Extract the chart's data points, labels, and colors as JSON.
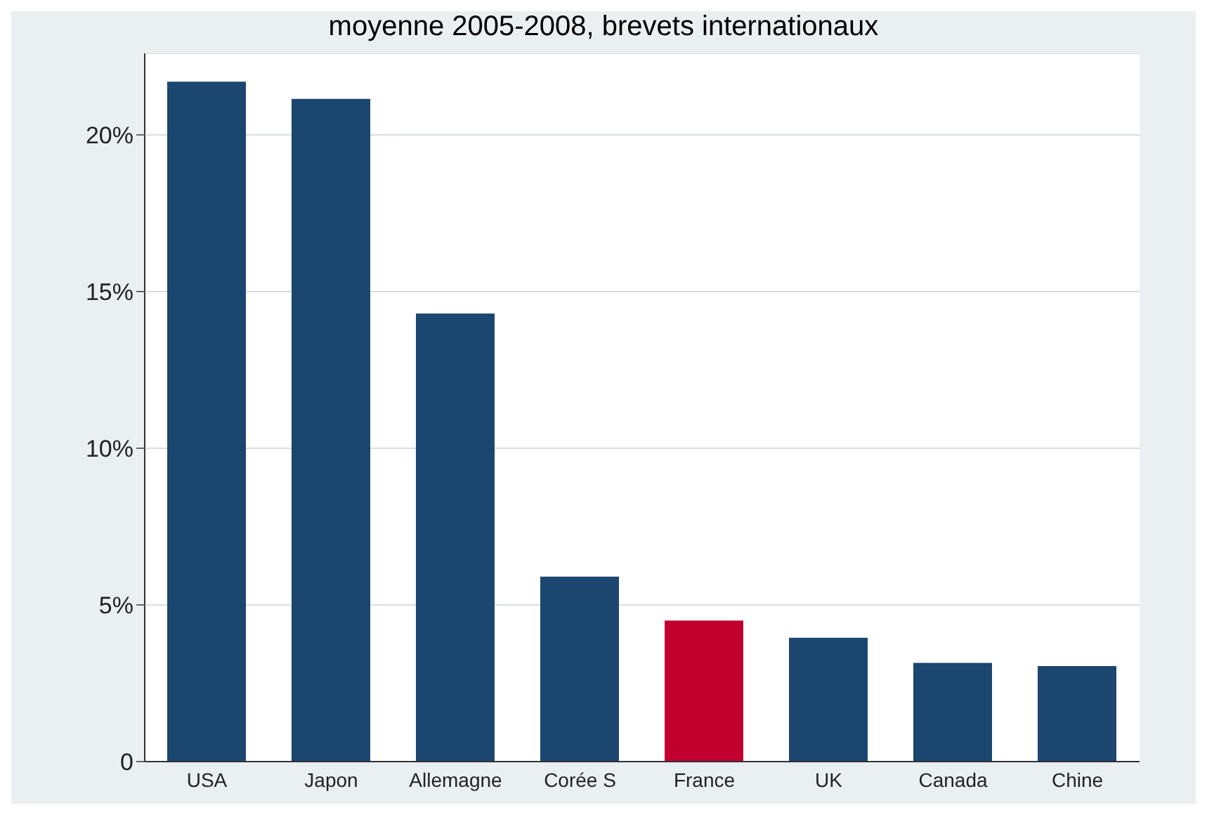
{
  "chart_data": {
    "type": "bar",
    "title": "moyenne 2005-2008, brevets internationaux",
    "categories": [
      "USA",
      "Japon",
      "Allemagne",
      "Corée S",
      "France",
      "UK",
      "Canada",
      "Chine"
    ],
    "values": [
      21.7,
      21.15,
      14.3,
      5.9,
      4.5,
      3.95,
      3.15,
      3.05
    ],
    "colors": [
      "#1b4670",
      "#1b4670",
      "#1b4670",
      "#1b4670",
      "#c20030",
      "#1b4670",
      "#1b4670",
      "#1b4670"
    ],
    "ylim": [
      0,
      22.6
    ],
    "yticks": [
      {
        "value": 0,
        "label": "0"
      },
      {
        "value": 5,
        "label": "5%"
      },
      {
        "value": 10,
        "label": "10%"
      },
      {
        "value": 15,
        "label": "15%"
      },
      {
        "value": 20,
        "label": "20%"
      }
    ],
    "grid": "y"
  }
}
